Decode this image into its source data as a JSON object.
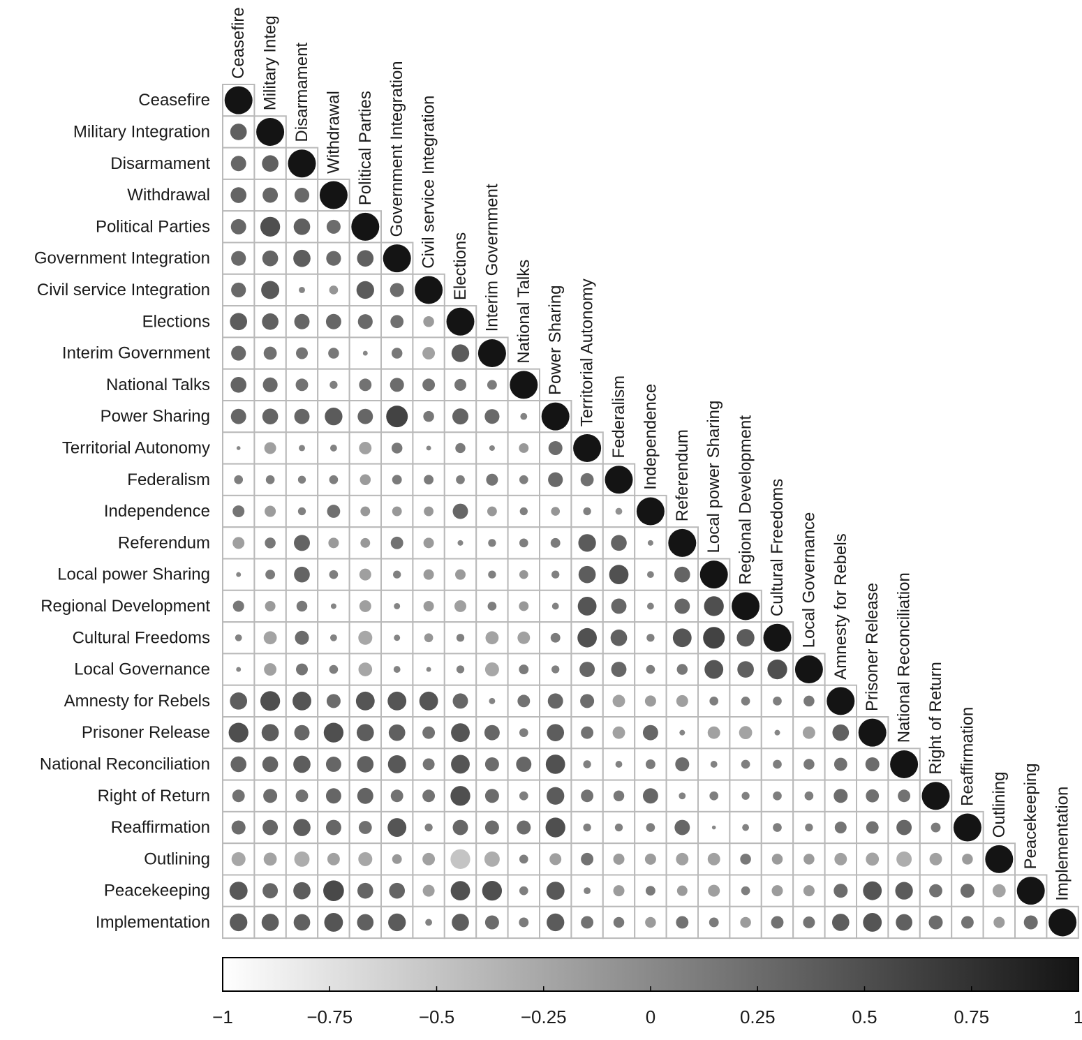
{
  "chart_data": {
    "type": "heatmap",
    "subtype": "correlation-matrix-lower-triangle",
    "title": "",
    "xlabel": "",
    "ylabel": "",
    "variables": [
      "Ceasefire",
      "Military Integration",
      "Disarmament",
      "Withdrawal",
      "Political Parties",
      "Government Integration",
      "Civil service Integration",
      "Elections",
      "Interim Government",
      "National Talks",
      "Power Sharing",
      "Territorial Autonomy",
      "Federalism",
      "Independence",
      "Referendum",
      "Local power Sharing",
      "Regional Development",
      "Cultural Freedoms",
      "Local Governance",
      "Amnesty for Rebels",
      "Prisoner Release",
      "National Reconciliation",
      "Right of Return",
      "Reaffirmation",
      "Outlining",
      "Peacekeeping",
      "Implementation"
    ],
    "column_labels": [
      "Ceasefire",
      "Military Integ",
      "Disarmament",
      "Withdrawal",
      "Political Parties",
      "Government Integration",
      "Civil service Integration",
      "Elections",
      "Interim Government",
      "National Talks",
      "Power Sharing",
      "Territorial Autonomy",
      "Federalism",
      "Independence",
      "Referendum",
      "Local power Sharing",
      "Regional Development",
      "Cultural Freedoms",
      "Local Governance",
      "Amnesty for Rebels",
      "Prisoner Release",
      "National Reconciliation",
      "Right of Return",
      "Reaffirmation",
      "Outlining",
      "Peacekeeping",
      "Implementation"
    ],
    "matrix": [
      [
        1.0
      ],
      [
        0.35,
        1.0
      ],
      [
        0.3,
        0.35,
        1.0
      ],
      [
        0.32,
        0.3,
        0.28,
        1.0
      ],
      [
        0.3,
        0.5,
        0.35,
        0.25,
        1.0
      ],
      [
        0.28,
        0.32,
        0.38,
        0.28,
        0.35,
        1.0
      ],
      [
        0.28,
        0.42,
        0.05,
        -0.1,
        0.4,
        0.25,
        1.0
      ],
      [
        0.38,
        0.35,
        0.3,
        0.3,
        0.28,
        0.22,
        -0.15,
        1.0
      ],
      [
        0.28,
        0.22,
        0.18,
        0.15,
        0.03,
        0.15,
        -0.2,
        0.4,
        1.0
      ],
      [
        0.32,
        0.28,
        0.2,
        0.08,
        0.2,
        0.25,
        0.2,
        0.18,
        0.12,
        1.0
      ],
      [
        0.3,
        0.32,
        0.3,
        0.4,
        0.3,
        0.6,
        0.15,
        0.33,
        0.28,
        0.06,
        1.0
      ],
      [
        0.02,
        -0.18,
        0.05,
        0.06,
        -0.2,
        0.15,
        0.03,
        0.13,
        0.04,
        -0.12,
        0.25,
        1.0
      ],
      [
        0.1,
        0.1,
        0.08,
        0.1,
        -0.15,
        0.12,
        0.12,
        0.1,
        0.18,
        0.1,
        0.28,
        0.22,
        1.0
      ],
      [
        0.18,
        -0.16,
        0.08,
        0.22,
        -0.12,
        -0.12,
        -0.12,
        0.3,
        -0.12,
        0.08,
        -0.1,
        0.08,
        -0.06,
        1.0
      ],
      [
        -0.18,
        0.15,
        0.33,
        -0.14,
        -0.12,
        0.2,
        -0.14,
        0.04,
        0.08,
        0.1,
        0.12,
        0.4,
        0.32,
        0.04,
        1.0
      ],
      [
        0.03,
        0.12,
        0.32,
        0.1,
        -0.18,
        0.08,
        -0.14,
        -0.14,
        0.08,
        -0.1,
        0.08,
        0.38,
        0.48,
        0.06,
        0.32,
        1.0
      ],
      [
        0.16,
        -0.14,
        0.15,
        0.04,
        -0.18,
        0.05,
        -0.14,
        -0.18,
        0.1,
        -0.12,
        0.06,
        0.45,
        0.3,
        0.06,
        0.3,
        0.5,
        1.0
      ],
      [
        0.06,
        -0.22,
        0.25,
        0.06,
        -0.25,
        0.05,
        -0.1,
        0.08,
        -0.22,
        -0.2,
        0.12,
        0.48,
        0.35,
        0.08,
        0.45,
        0.6,
        0.4,
        1.0
      ],
      [
        0.03,
        -0.2,
        0.18,
        0.1,
        -0.24,
        0.06,
        0.03,
        0.08,
        -0.25,
        0.12,
        0.08,
        0.3,
        0.3,
        0.1,
        0.15,
        0.45,
        0.35,
        0.5,
        1.0
      ],
      [
        0.38,
        0.5,
        0.45,
        0.25,
        0.45,
        0.45,
        0.45,
        0.3,
        0.05,
        0.2,
        0.3,
        0.25,
        -0.2,
        -0.16,
        -0.18,
        0.1,
        0.1,
        0.1,
        0.15,
        1.0
      ],
      [
        0.5,
        0.38,
        0.3,
        0.5,
        0.38,
        0.35,
        0.2,
        0.45,
        0.3,
        0.1,
        0.38,
        0.2,
        -0.2,
        0.3,
        0.04,
        -0.2,
        -0.22,
        0.04,
        -0.2,
        0.35,
        1.0
      ],
      [
        0.32,
        0.32,
        0.38,
        0.3,
        0.35,
        0.42,
        0.18,
        0.45,
        0.25,
        0.3,
        0.48,
        0.08,
        0.06,
        0.12,
        0.25,
        0.06,
        0.1,
        0.1,
        0.15,
        0.22,
        0.25,
        1.0
      ],
      [
        0.2,
        0.25,
        0.2,
        0.3,
        0.33,
        0.2,
        0.2,
        0.5,
        0.25,
        0.1,
        0.4,
        0.2,
        0.15,
        0.3,
        0.06,
        0.1,
        0.08,
        0.1,
        0.1,
        0.25,
        0.22,
        0.2,
        1.0
      ],
      [
        0.25,
        0.3,
        0.38,
        0.3,
        0.22,
        0.45,
        0.08,
        0.3,
        0.25,
        0.25,
        0.5,
        0.08,
        0.08,
        0.1,
        0.3,
        0.02,
        0.06,
        0.1,
        0.08,
        0.18,
        0.2,
        0.3,
        0.12,
        1.0
      ],
      [
        -0.25,
        -0.22,
        -0.3,
        -0.2,
        -0.25,
        -0.12,
        -0.2,
        -0.5,
        -0.3,
        0.1,
        -0.18,
        0.2,
        -0.16,
        -0.16,
        -0.2,
        -0.2,
        0.15,
        -0.15,
        -0.15,
        -0.2,
        -0.22,
        -0.3,
        -0.2,
        -0.15,
        1.0
      ],
      [
        0.42,
        0.3,
        0.38,
        0.55,
        0.32,
        0.32,
        -0.18,
        0.48,
        0.5,
        0.1,
        0.42,
        0.06,
        -0.16,
        0.12,
        -0.14,
        -0.18,
        0.1,
        -0.16,
        -0.16,
        0.25,
        0.45,
        0.4,
        0.22,
        0.25,
        -0.22,
        1.0
      ],
      [
        0.4,
        0.38,
        0.35,
        0.45,
        0.35,
        0.4,
        0.06,
        0.38,
        0.25,
        0.12,
        0.4,
        0.2,
        0.15,
        -0.15,
        0.2,
        0.12,
        -0.15,
        0.2,
        0.18,
        0.38,
        0.45,
        0.35,
        0.25,
        0.2,
        -0.16,
        0.25,
        1.0
      ]
    ],
    "colorbar": {
      "range": [
        -1,
        1
      ],
      "ticks": [
        -1,
        -0.75,
        -0.5,
        -0.25,
        0,
        0.25,
        0.5,
        0.75,
        1
      ],
      "tick_labels": [
        "−1",
        "−0.75",
        "−0.5",
        "−0.25",
        "0",
        "0.25",
        "0.5",
        "0.75",
        "1"
      ],
      "low_color": "#ffffff",
      "high_color": "#141414"
    },
    "legend_position": "bottom"
  }
}
